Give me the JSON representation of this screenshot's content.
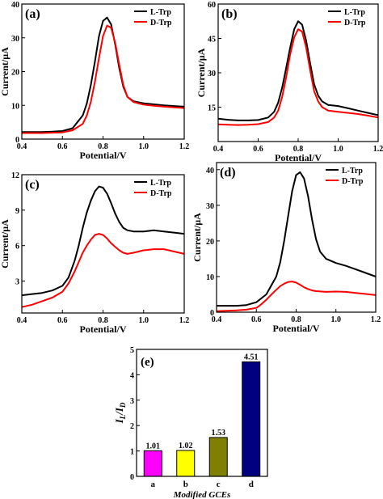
{
  "chart_data": [
    {
      "panel": "(a)",
      "type": "line",
      "xlabel": "Potential/V",
      "ylabel": "Current/µA",
      "xlim": [
        0.4,
        1.2
      ],
      "ylim": [
        0,
        40
      ],
      "xticks": [
        "0.4",
        "0.6",
        "0.8",
        "1.0",
        "1.2"
      ],
      "yticks": [
        "0",
        "10",
        "20",
        "30",
        "40"
      ],
      "legend": "top-right",
      "series": [
        {
          "name": "L-Trp",
          "color": "#000000",
          "x": [
            0.4,
            0.45,
            0.5,
            0.55,
            0.6,
            0.65,
            0.7,
            0.72,
            0.74,
            0.76,
            0.78,
            0.8,
            0.82,
            0.84,
            0.86,
            0.88,
            0.9,
            0.92,
            0.95,
            1.0,
            1.05,
            1.1,
            1.15,
            1.2
          ],
          "y": [
            2.1,
            2.1,
            2.1,
            2.2,
            2.4,
            3.2,
            7.0,
            10.5,
            16.0,
            23.0,
            30.5,
            35.0,
            36.0,
            34.0,
            28.0,
            21.0,
            15.5,
            12.5,
            11.2,
            10.6,
            10.3,
            10.0,
            9.8,
            9.6
          ]
        },
        {
          "name": "D-Trp",
          "color": "#ff0000",
          "x": [
            0.4,
            0.45,
            0.5,
            0.55,
            0.6,
            0.65,
            0.7,
            0.72,
            0.74,
            0.76,
            0.78,
            0.8,
            0.82,
            0.84,
            0.86,
            0.88,
            0.9,
            0.92,
            0.95,
            1.0,
            1.05,
            1.1,
            1.15,
            1.2
          ],
          "y": [
            1.8,
            1.8,
            1.8,
            1.9,
            2.0,
            2.6,
            4.5,
            7.0,
            11.0,
            17.0,
            24.0,
            30.5,
            33.6,
            33.0,
            28.5,
            22.0,
            16.0,
            12.5,
            11.0,
            10.2,
            9.9,
            9.6,
            9.4,
            9.2
          ]
        }
      ]
    },
    {
      "panel": "(b)",
      "type": "line",
      "xlabel": "Potential/V",
      "ylabel": "Current/µA",
      "xlim": [
        0.4,
        1.2
      ],
      "ylim": [
        0,
        60
      ],
      "xticks": [
        "0.4",
        "0.6",
        "0.8",
        "1.0",
        "1.2"
      ],
      "yticks": [
        "15",
        "30",
        "45",
        "60"
      ],
      "legend": "top-right",
      "series": [
        {
          "name": "L-Trp",
          "color": "#000000",
          "x": [
            0.4,
            0.45,
            0.5,
            0.55,
            0.6,
            0.65,
            0.68,
            0.7,
            0.72,
            0.74,
            0.76,
            0.78,
            0.8,
            0.82,
            0.84,
            0.86,
            0.88,
            0.9,
            0.92,
            0.95,
            1.0,
            1.05,
            1.1,
            1.15,
            1.2
          ],
          "y": [
            10.0,
            9.5,
            9.2,
            9.2,
            9.4,
            10.5,
            13.0,
            17.0,
            23.5,
            32.0,
            41.0,
            49.0,
            52.5,
            51.0,
            44.0,
            34.0,
            25.0,
            20.0,
            17.5,
            16.0,
            15.5,
            14.5,
            13.5,
            12.5,
            11.5
          ]
        },
        {
          "name": "D-Trp",
          "color": "#ff0000",
          "x": [
            0.4,
            0.45,
            0.5,
            0.55,
            0.6,
            0.65,
            0.68,
            0.7,
            0.72,
            0.74,
            0.76,
            0.78,
            0.8,
            0.82,
            0.84,
            0.86,
            0.88,
            0.9,
            0.92,
            0.95,
            1.0,
            1.05,
            1.1,
            1.15,
            1.2
          ],
          "y": [
            7.5,
            7.3,
            7.2,
            7.3,
            7.6,
            8.5,
            10.5,
            13.5,
            19.5,
            28.0,
            38.0,
            45.5,
            49.0,
            48.0,
            41.0,
            31.0,
            22.0,
            17.5,
            15.0,
            13.5,
            13.0,
            12.5,
            12.0,
            11.3,
            10.5
          ]
        }
      ]
    },
    {
      "panel": "(c)",
      "type": "line",
      "xlabel": "Potential/V",
      "ylabel": "Current/µA",
      "xlim": [
        0.4,
        1.2
      ],
      "ylim": [
        0.3,
        12
      ],
      "xticks": [
        "0.4",
        "0.6",
        "0.8",
        "1.0",
        "1.2"
      ],
      "yticks": [
        "3",
        "6",
        "9",
        "12"
      ],
      "legend": "top-right",
      "series": [
        {
          "name": "L-Trp",
          "color": "#000000",
          "x": [
            0.4,
            0.45,
            0.5,
            0.55,
            0.6,
            0.63,
            0.66,
            0.68,
            0.7,
            0.72,
            0.74,
            0.76,
            0.78,
            0.8,
            0.82,
            0.84,
            0.86,
            0.88,
            0.9,
            0.92,
            0.95,
            1.0,
            1.05,
            1.1,
            1.15,
            1.2
          ],
          "y": [
            1.8,
            1.9,
            2.0,
            2.2,
            2.6,
            3.3,
            4.7,
            6.0,
            7.5,
            8.8,
            9.8,
            10.6,
            11.0,
            10.9,
            10.4,
            9.6,
            8.7,
            8.0,
            7.5,
            7.3,
            7.2,
            7.2,
            7.3,
            7.2,
            7.1,
            7.0
          ]
        },
        {
          "name": "D-Trp",
          "color": "#ff0000",
          "x": [
            0.4,
            0.45,
            0.5,
            0.55,
            0.6,
            0.63,
            0.66,
            0.68,
            0.7,
            0.72,
            0.74,
            0.76,
            0.78,
            0.8,
            0.82,
            0.84,
            0.86,
            0.88,
            0.9,
            0.92,
            0.95,
            1.0,
            1.05,
            1.1,
            1.15,
            1.2
          ],
          "y": [
            0.8,
            1.0,
            1.3,
            1.6,
            2.1,
            2.8,
            3.8,
            4.6,
            5.4,
            6.0,
            6.5,
            6.9,
            7.0,
            6.9,
            6.6,
            6.2,
            5.9,
            5.6,
            5.4,
            5.3,
            5.4,
            5.6,
            5.7,
            5.7,
            5.5,
            5.3
          ]
        }
      ]
    },
    {
      "panel": "(d)",
      "type": "line",
      "xlabel": "Potential/V",
      "ylabel": "Current/µA",
      "xlim": [
        0.4,
        1.2
      ],
      "ylim": [
        0,
        42
      ],
      "xticks": [
        "0.4",
        "0.6",
        "0.8",
        "1.0",
        "1.2"
      ],
      "yticks": [
        "0",
        "10",
        "20",
        "30",
        "40"
      ],
      "legend": "top-right",
      "series": [
        {
          "name": "L-Trp",
          "color": "#000000",
          "x": [
            0.4,
            0.45,
            0.5,
            0.55,
            0.6,
            0.65,
            0.7,
            0.72,
            0.74,
            0.76,
            0.78,
            0.8,
            0.82,
            0.84,
            0.86,
            0.88,
            0.9,
            0.92,
            0.95,
            1.0,
            1.05,
            1.1,
            1.15,
            1.2
          ],
          "y": [
            1.8,
            1.8,
            1.8,
            2.0,
            2.8,
            5.0,
            10.0,
            14.0,
            20.0,
            27.0,
            34.0,
            38.5,
            39.3,
            37.5,
            32.5,
            26.0,
            20.5,
            17.0,
            15.0,
            13.8,
            13.0,
            12.0,
            11.0,
            10.0
          ]
        },
        {
          "name": "D-Trp",
          "color": "#ff0000",
          "x": [
            0.4,
            0.45,
            0.5,
            0.55,
            0.6,
            0.62,
            0.65,
            0.68,
            0.7,
            0.72,
            0.74,
            0.76,
            0.78,
            0.8,
            0.82,
            0.84,
            0.86,
            0.88,
            0.9,
            0.95,
            1.0,
            1.05,
            1.1,
            1.15,
            1.2
          ],
          "y": [
            0.3,
            0.4,
            0.5,
            0.7,
            1.2,
            2.0,
            3.5,
            5.2,
            6.3,
            7.3,
            8.0,
            8.5,
            8.6,
            8.3,
            7.7,
            7.0,
            6.5,
            6.1,
            5.9,
            5.7,
            5.8,
            5.7,
            5.4,
            5.1,
            4.8
          ]
        }
      ]
    },
    {
      "panel": "(e)",
      "type": "bar",
      "xlabel": "Modified GCEs",
      "ylabel": "IL/ID",
      "ylim": [
        0,
        5
      ],
      "yticks": [
        "0",
        "1",
        "2",
        "3",
        "4",
        "5"
      ],
      "categories": [
        "a",
        "b",
        "c",
        "d"
      ],
      "values": [
        1.01,
        1.02,
        1.53,
        4.51
      ],
      "labels": [
        "1.01",
        "1.02",
        "1.53",
        "4.51"
      ],
      "colors": [
        "#ff00ff",
        "#ffff00",
        "#808000",
        "#000080"
      ]
    }
  ]
}
